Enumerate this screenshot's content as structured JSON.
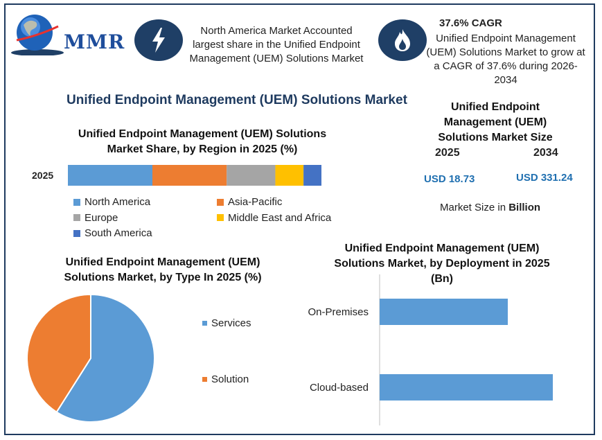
{
  "logo": {
    "text": "MMR"
  },
  "header": {
    "info1": "North America Market Accounted largest share in the Unified Endpoint Management (UEM) Solutions Market",
    "cagr_title": "37.6% CAGR",
    "cagr_text": "Unified Endpoint Management (UEM) Solutions Market to grow at a CAGR of 37.6% during 2026-2034"
  },
  "main_title": "Unified Endpoint Management (UEM) Solutions Market",
  "market_size": {
    "title": "Unified Endpoint Management (UEM) Solutions Market Size",
    "year1": "2025",
    "year2": "2034",
    "value1": "USD 18.73",
    "value2": "USD 331.24",
    "unit_prefix": "Market Size in ",
    "unit_bold": "Billion"
  },
  "colors": {
    "blue": "#5b9bd5",
    "orange": "#ed7d31",
    "gray": "#a5a5a5",
    "yellow": "#ffc000",
    "darkblue": "#4472c4",
    "navy": "#1f3f66"
  },
  "chart_data": [
    {
      "type": "bar",
      "orientation": "horizontal-stacked",
      "title": "Unified Endpoint Management (UEM) Solutions Market Share, by Region in 2025 (%)",
      "categories": [
        "2025"
      ],
      "series": [
        {
          "name": "North America",
          "values": [
            33
          ]
        },
        {
          "name": "Asia-Pacific",
          "values": [
            29
          ]
        },
        {
          "name": "Europe",
          "values": [
            19
          ]
        },
        {
          "name": "Middle East and Africa",
          "values": [
            11
          ]
        },
        {
          "name": "South America",
          "values": [
            7
          ]
        }
      ],
      "xlim": [
        0,
        99
      ],
      "legend": "bottom"
    },
    {
      "type": "pie",
      "title": "Unified Endpoint Management (UEM) Solutions Market, by Type In 2025 (%)",
      "categories": [
        "Services",
        "Solution"
      ],
      "values": [
        59,
        41
      ],
      "legend": "right"
    },
    {
      "type": "bar",
      "orientation": "horizontal",
      "title": "Unified Endpoint Management (UEM) Solutions Market, by Deployment in 2025 (Bn)",
      "categories": [
        "On-Premises",
        "Cloud-based"
      ],
      "values": [
        7.4,
        10.0
      ],
      "xlim": [
        0,
        12
      ]
    }
  ]
}
